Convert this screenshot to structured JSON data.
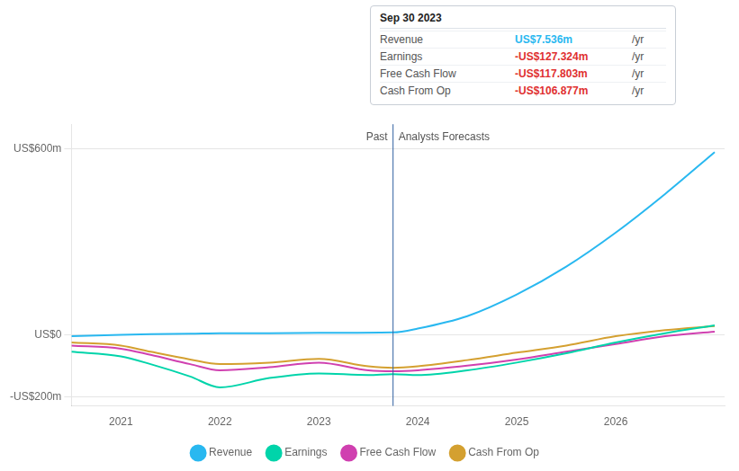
{
  "chart_data": {
    "type": "line",
    "xlim": [
      2020.5,
      2027.1
    ],
    "xticks": [
      2021,
      2022,
      2023,
      2024,
      2025,
      2026
    ],
    "ylim": [
      -230,
      680
    ],
    "yticks": [
      {
        "value": 600,
        "label": "US$600m"
      },
      {
        "value": 0,
        "label": "US$0"
      },
      {
        "value": -200,
        "label": "-US$200m"
      }
    ],
    "grid": true,
    "legend": "bottom",
    "divider": {
      "x": 2023.75,
      "labels": [
        "Past",
        "Analysts Forecasts"
      ]
    },
    "tooltip": {
      "title": "Sep 30 2023",
      "rows": [
        {
          "label": "Revenue",
          "value": "US$7.536m",
          "unit": "/yr",
          "color": "#29b8f0"
        },
        {
          "label": "Earnings",
          "value": "-US$127.324m",
          "unit": "/yr",
          "color": "#e03030"
        },
        {
          "label": "Free Cash Flow",
          "value": "-US$117.803m",
          "unit": "/yr",
          "color": "#e03030"
        },
        {
          "label": "Cash From Op",
          "value": "-US$106.877m",
          "unit": "/yr",
          "color": "#e03030"
        }
      ]
    },
    "series": [
      {
        "name": "Revenue",
        "color": "#29b8f0",
        "x": [
          2020.5,
          2021.0,
          2021.3,
          2021.7,
          2022.0,
          2022.5,
          2023.0,
          2023.75,
          2024.0,
          2024.5,
          2025.0,
          2025.5,
          2026.0,
          2026.5,
          2027.0
        ],
        "values": [
          -5,
          0,
          2,
          3,
          5,
          5,
          6,
          7.5,
          20,
          60,
          130,
          220,
          330,
          455,
          590
        ]
      },
      {
        "name": "Earnings",
        "color": "#00d4aa",
        "x": [
          2020.5,
          2021.0,
          2021.3,
          2021.7,
          2022.0,
          2022.5,
          2023.0,
          2023.5,
          2023.75,
          2024.0,
          2024.5,
          2025.0,
          2025.5,
          2026.0,
          2026.5,
          2027.0
        ],
        "values": [
          -55,
          -70,
          -95,
          -135,
          -170,
          -140,
          -125,
          -130,
          -127,
          -130,
          -115,
          -90,
          -60,
          -25,
          5,
          30
        ]
      },
      {
        "name": "Free Cash Flow",
        "color": "#d040b0",
        "x": [
          2020.5,
          2021.0,
          2021.3,
          2021.7,
          2022.0,
          2022.5,
          2023.0,
          2023.5,
          2023.75,
          2024.0,
          2024.5,
          2025.0,
          2025.5,
          2026.0,
          2026.5,
          2027.0
        ],
        "values": [
          -35,
          -45,
          -65,
          -95,
          -115,
          -105,
          -90,
          -115,
          -118,
          -115,
          -100,
          -80,
          -55,
          -30,
          -5,
          10
        ]
      },
      {
        "name": "Cash From Op",
        "color": "#d4a030",
        "x": [
          2020.5,
          2021.0,
          2021.3,
          2021.7,
          2022.0,
          2022.5,
          2023.0,
          2023.5,
          2023.75,
          2024.0,
          2024.5,
          2025.0,
          2025.5,
          2026.0,
          2026.5,
          2027.0
        ],
        "values": [
          -25,
          -35,
          -55,
          -80,
          -95,
          -90,
          -78,
          -102,
          -107,
          -102,
          -82,
          -58,
          -35,
          -5,
          15,
          28
        ]
      }
    ]
  }
}
